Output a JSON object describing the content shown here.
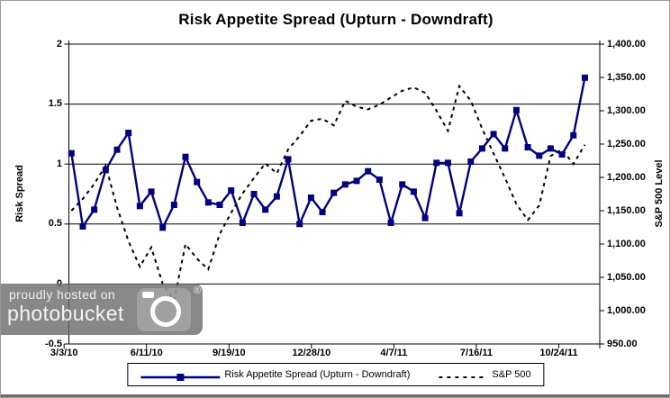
{
  "watermark": {
    "line1": "proudly hosted on",
    "line2": "photobucket",
    "registered": "®"
  },
  "chart_data": {
    "type": "line",
    "title": "Risk Appetite Spread (Upturn - Downdraft)",
    "x_tick_labels": [
      "3/3/10",
      "6/11/10",
      "9/19/10",
      "12/28/10",
      "4/7/11",
      "7/16/11",
      "10/24/11"
    ],
    "left_axis": {
      "label": "Risk Spread",
      "min": -0.5,
      "max": 2,
      "step": 0.5,
      "tick_labels": [
        "2",
        "1.5",
        "1",
        "0.5",
        "0",
        "-0.5"
      ],
      "tick_values": [
        2,
        1.5,
        1,
        0.5,
        0,
        -0.5
      ]
    },
    "right_axis": {
      "label": "S&P 500 Level",
      "min": 950,
      "max": 1400,
      "step": 50,
      "tick_labels": [
        "1,400.00",
        "1,350.00",
        "1,300.00",
        "1,250.00",
        "1,200.00",
        "1,150.00",
        "1,100.00",
        "1,050.00",
        "1,000.00",
        "950.00"
      ],
      "tick_values": [
        1400,
        1350,
        1300,
        1250,
        1200,
        1150,
        1100,
        1050,
        1000,
        950
      ]
    },
    "grid": "horizontal",
    "legend_position": "bottom",
    "series": [
      {
        "name": "Risk Appetite Spread (Upturn - Downdraft)",
        "axis": "left",
        "line": "solid",
        "marker": "square",
        "color": "#000080",
        "values": [
          1.09,
          0.48,
          0.62,
          0.95,
          1.12,
          1.26,
          0.65,
          0.77,
          0.47,
          0.66,
          1.06,
          0.85,
          0.68,
          0.66,
          0.78,
          0.51,
          0.75,
          0.62,
          0.73,
          1.04,
          0.5,
          0.72,
          0.6,
          0.76,
          0.83,
          0.86,
          0.94,
          0.87,
          0.51,
          0.83,
          0.77,
          0.55,
          1.01,
          1.01,
          0.59,
          1.02,
          1.13,
          1.25,
          1.13,
          1.45,
          1.14,
          1.07,
          1.13,
          1.08,
          1.24,
          1.72
        ]
      },
      {
        "name": "S&P 500",
        "axis": "right",
        "line": "dashed",
        "marker": "none",
        "color": "#000000",
        "values": [
          1150,
          1168,
          1190,
          1218,
          1155,
          1104,
          1066,
          1095,
          1040,
          1015,
          1100,
          1078,
          1062,
          1115,
          1147,
          1176,
          1199,
          1221,
          1206,
          1242,
          1262,
          1285,
          1288,
          1278,
          1315,
          1306,
          1302,
          1309,
          1320,
          1330,
          1335,
          1327,
          1300,
          1270,
          1337,
          1315,
          1273,
          1236,
          1199,
          1160,
          1136,
          1158,
          1232,
          1242,
          1220,
          1249
        ]
      }
    ]
  }
}
